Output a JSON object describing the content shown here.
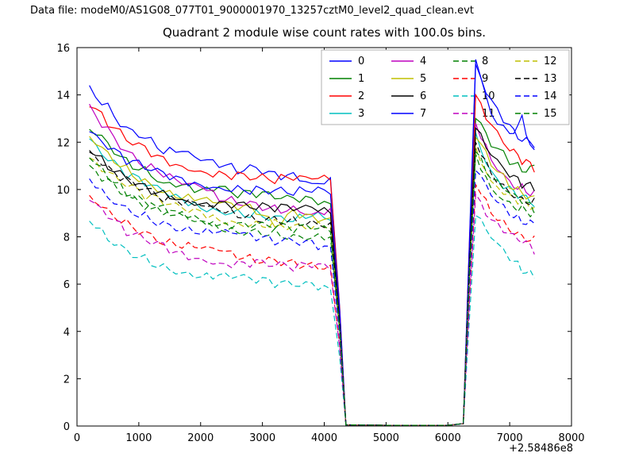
{
  "header": {
    "data_file_label": "Data file: modeM0/AS1G08_077T01_9000001970_13257cztM0_level2_quad_clean.evt"
  },
  "chart_data": {
    "type": "line",
    "title": "Quadrant 2 module wise count rates with 100.0s bins.",
    "xlabel": "",
    "ylabel": "",
    "x_axis": {
      "lim": [
        0,
        8000
      ],
      "ticks": [
        0,
        1000,
        2000,
        3000,
        4000,
        5000,
        6000,
        7000,
        8000
      ],
      "offset_label": "+2.58486e8"
    },
    "y_axis": {
      "lim": [
        0,
        16
      ],
      "ticks": [
        0,
        2,
        4,
        6,
        8,
        10,
        12,
        14,
        16
      ]
    },
    "legend": {
      "position": "upper center-right inside axes, 4 columns",
      "entries": [
        "0",
        "1",
        "2",
        "3",
        "4",
        "5",
        "6",
        "7",
        "8",
        "9",
        "10",
        "11",
        "12",
        "13",
        "14",
        "15"
      ]
    },
    "grid": false,
    "x": [
      200,
      500,
      800,
      1100,
      1400,
      1700,
      2000,
      2300,
      2600,
      2900,
      3200,
      3500,
      3800,
      4100,
      4250,
      4350,
      5000,
      6000,
      6250,
      6350,
      6450,
      6700,
      7000,
      7200,
      7400
    ],
    "series": [
      {
        "name": "0",
        "color": "#0000ff",
        "style": "solid",
        "values": [
          14.4,
          13.5,
          12.6,
          12.3,
          11.6,
          11.5,
          11.1,
          11.0,
          10.8,
          10.9,
          10.6,
          10.7,
          10.4,
          10.5,
          5.0,
          0.05,
          0.03,
          0.03,
          0.1,
          8.0,
          15.5,
          13.2,
          12.4,
          13.0,
          11.6
        ]
      },
      {
        "name": "1",
        "color": "#008000",
        "style": "solid",
        "values": [
          12.7,
          12.0,
          11.2,
          10.9,
          10.4,
          10.3,
          9.9,
          10.0,
          9.7,
          9.8,
          9.6,
          9.5,
          9.6,
          9.4,
          4.6,
          0.05,
          0.03,
          0.03,
          0.1,
          7.5,
          13.0,
          11.8,
          11.2,
          10.8,
          10.9
        ]
      },
      {
        "name": "2",
        "color": "#ff0000",
        "style": "solid",
        "values": [
          13.5,
          12.8,
          12.1,
          11.7,
          11.3,
          11.1,
          10.9,
          10.7,
          10.6,
          10.5,
          10.4,
          10.4,
          10.3,
          10.4,
          4.9,
          0.05,
          0.03,
          0.03,
          0.1,
          7.8,
          14.0,
          12.6,
          11.6,
          11.2,
          10.8
        ]
      },
      {
        "name": "3",
        "color": "#00bfbf",
        "style": "solid",
        "values": [
          12.0,
          11.2,
          10.6,
          10.2,
          9.8,
          9.5,
          9.3,
          9.2,
          9.1,
          9.0,
          8.9,
          8.8,
          8.9,
          8.7,
          4.3,
          0.05,
          0.03,
          0.03,
          0.1,
          6.9,
          12.4,
          10.8,
          10.0,
          9.7,
          9.4
        ]
      },
      {
        "name": "4",
        "color": "#bf00bf",
        "style": "solid",
        "values": [
          13.6,
          12.5,
          11.6,
          11.0,
          10.6,
          10.1,
          10.0,
          9.6,
          9.5,
          9.4,
          9.2,
          9.3,
          9.1,
          9.2,
          4.5,
          0.05,
          0.03,
          0.03,
          0.1,
          7.2,
          12.8,
          11.4,
          10.4,
          10.1,
          9.9
        ]
      },
      {
        "name": "5",
        "color": "#bfbf00",
        "style": "solid",
        "values": [
          12.4,
          11.6,
          10.9,
          10.4,
          10.0,
          9.7,
          9.5,
          9.3,
          9.2,
          9.1,
          8.4,
          9.0,
          8.9,
          8.8,
          4.4,
          0.05,
          0.03,
          0.03,
          0.1,
          7.0,
          12.2,
          11.0,
          10.2,
          9.9,
          9.6
        ]
      },
      {
        "name": "6",
        "color": "#000000",
        "style": "solid",
        "values": [
          11.6,
          11.0,
          10.5,
          10.1,
          9.9,
          9.7,
          9.5,
          9.4,
          9.3,
          9.2,
          9.2,
          9.1,
          9.1,
          9.0,
          4.5,
          0.05,
          0.03,
          0.03,
          0.1,
          7.1,
          12.6,
          11.3,
          10.5,
          10.2,
          10.0
        ]
      },
      {
        "name": "7",
        "color": "#0000ff",
        "style": "solid",
        "values": [
          12.3,
          11.7,
          11.2,
          10.9,
          10.6,
          10.4,
          10.3,
          10.2,
          10.1,
          10.0,
          10.0,
          9.9,
          9.9,
          9.8,
          4.8,
          0.05,
          0.03,
          0.03,
          0.1,
          7.7,
          15.3,
          13.8,
          12.6,
          12.0,
          11.9
        ]
      },
      {
        "name": "8",
        "color": "#008000",
        "style": "dashed",
        "values": [
          11.0,
          10.3,
          9.7,
          9.3,
          9.0,
          8.8,
          8.6,
          8.4,
          8.3,
          8.3,
          8.2,
          8.1,
          8.1,
          8.0,
          4.0,
          0.05,
          0.03,
          0.03,
          0.1,
          6.4,
          11.5,
          10.2,
          9.5,
          9.2,
          9.0
        ]
      },
      {
        "name": "9",
        "color": "#ff0000",
        "style": "dashed",
        "values": [
          9.9,
          9.2,
          8.6,
          8.2,
          7.8,
          7.6,
          7.4,
          7.3,
          7.1,
          7.0,
          7.0,
          6.9,
          6.9,
          6.8,
          3.4,
          0.05,
          0.03,
          0.03,
          0.1,
          5.4,
          10.2,
          9.0,
          8.4,
          8.1,
          7.9
        ]
      },
      {
        "name": "10",
        "color": "#00bfbf",
        "style": "dashed",
        "values": [
          8.7,
          8.0,
          7.5,
          7.1,
          6.8,
          6.6,
          6.4,
          6.3,
          6.2,
          6.1,
          6.0,
          5.9,
          5.9,
          5.8,
          2.9,
          0.05,
          0.03,
          0.03,
          0.1,
          4.6,
          8.9,
          7.8,
          7.0,
          6.6,
          6.3
        ]
      },
      {
        "name": "11",
        "color": "#bf00bf",
        "style": "dashed",
        "values": [
          9.4,
          8.8,
          8.2,
          7.9,
          7.6,
          7.3,
          7.2,
          7.0,
          6.9,
          6.9,
          6.8,
          6.7,
          6.7,
          6.6,
          3.3,
          0.05,
          0.03,
          0.03,
          0.1,
          5.3,
          9.8,
          8.7,
          8.0,
          7.7,
          7.4
        ]
      },
      {
        "name": "12",
        "color": "#bfbf00",
        "style": "dashed",
        "values": [
          11.3,
          10.6,
          10.1,
          9.7,
          9.4,
          9.1,
          9.0,
          8.8,
          8.7,
          8.6,
          8.6,
          8.5,
          8.5,
          8.4,
          4.2,
          0.05,
          0.03,
          0.03,
          0.1,
          6.7,
          11.8,
          10.5,
          9.8,
          9.5,
          9.2
        ]
      },
      {
        "name": "13",
        "color": "#000000",
        "style": "dashed",
        "values": [
          11.8,
          11.0,
          10.4,
          10.0,
          9.6,
          9.4,
          9.2,
          9.0,
          8.9,
          8.8,
          8.8,
          8.7,
          8.7,
          8.6,
          4.3,
          0.05,
          0.03,
          0.03,
          0.1,
          6.9,
          12.0,
          10.7,
          10.0,
          9.7,
          9.5
        ]
      },
      {
        "name": "14",
        "color": "#0000ff",
        "style": "dashed",
        "values": [
          10.5,
          9.8,
          9.3,
          8.9,
          8.6,
          8.4,
          8.2,
          8.1,
          8.0,
          7.9,
          7.8,
          7.8,
          7.7,
          7.6,
          3.8,
          0.05,
          0.03,
          0.03,
          0.1,
          6.1,
          10.8,
          9.6,
          8.9,
          8.7,
          8.6
        ]
      },
      {
        "name": "15",
        "color": "#008000",
        "style": "dashed",
        "values": [
          11.2,
          10.5,
          9.9,
          9.5,
          9.2,
          9.0,
          8.8,
          8.6,
          8.5,
          8.4,
          8.4,
          8.3,
          8.3,
          8.2,
          4.1,
          0.05,
          0.03,
          0.03,
          0.1,
          6.6,
          11.6,
          10.4,
          9.7,
          9.4,
          9.1
        ]
      }
    ]
  }
}
